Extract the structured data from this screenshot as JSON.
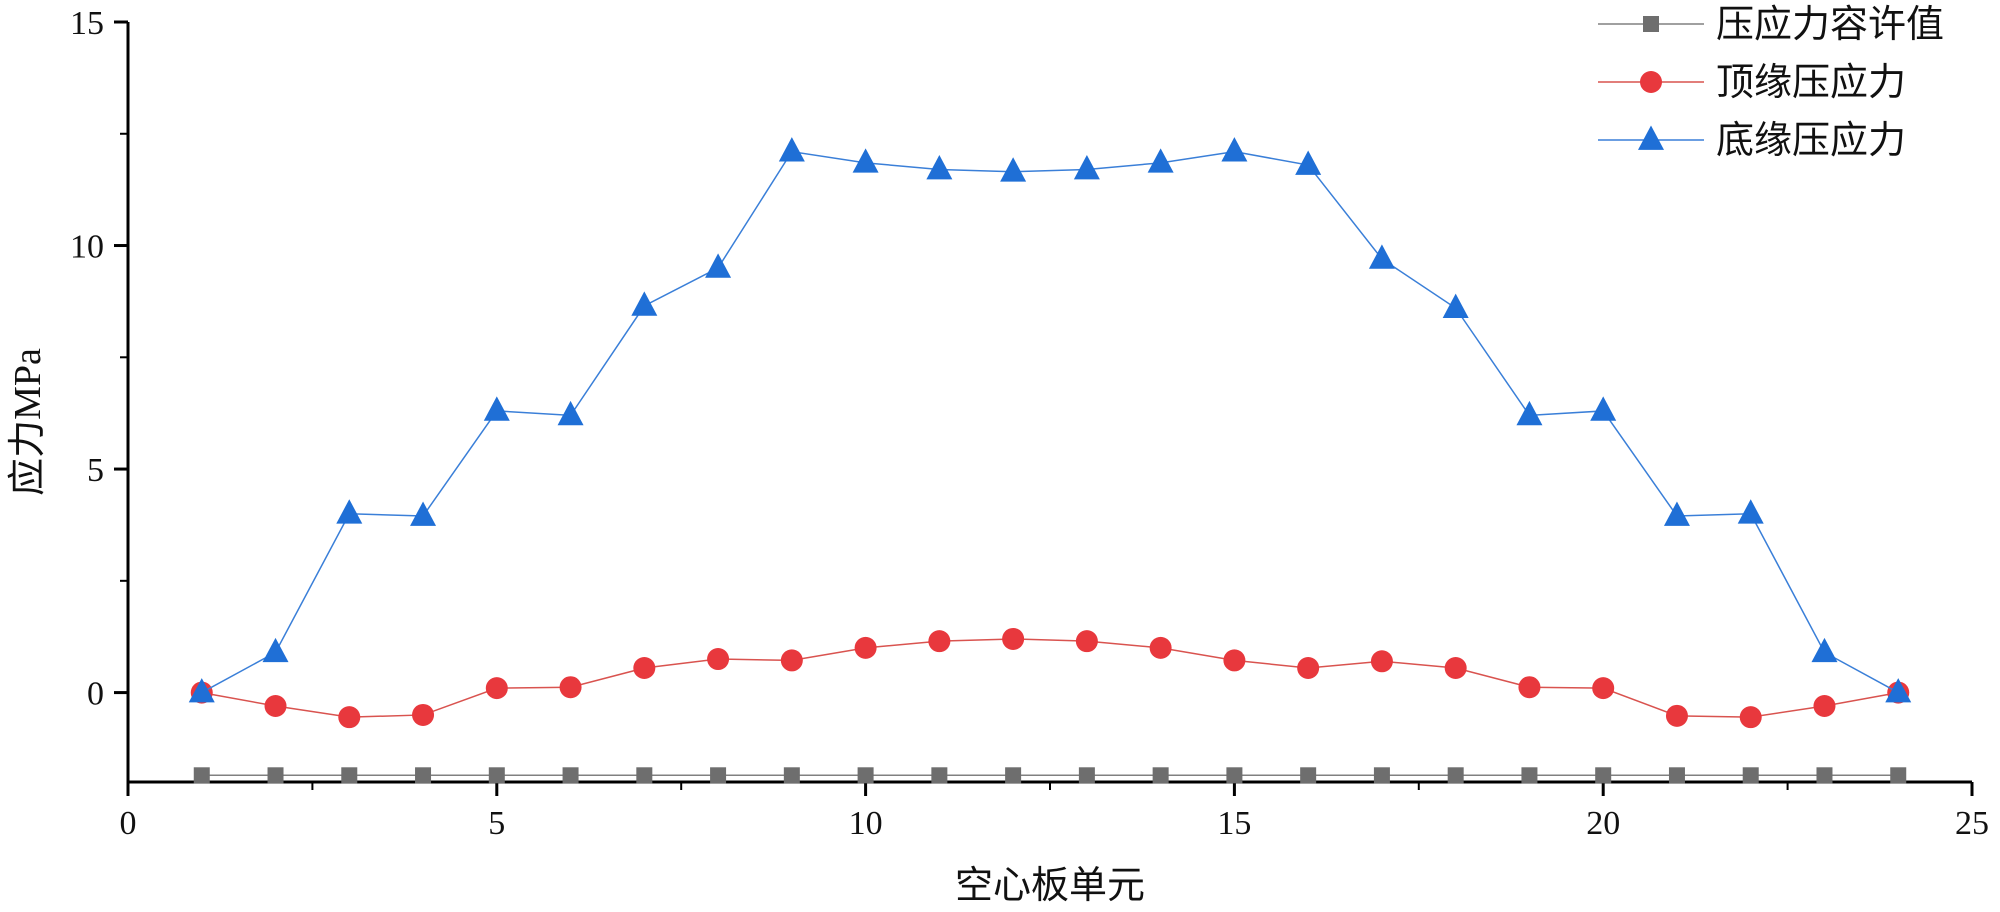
{
  "chart_data": {
    "type": "line",
    "title": "",
    "xlabel": "空心板单元",
    "ylabel": "应力MPa",
    "xlim": [
      0,
      25
    ],
    "ylim": [
      -2,
      15
    ],
    "x_ticks": [
      0,
      5,
      10,
      15,
      20,
      25
    ],
    "y_ticks": [
      0,
      5,
      10,
      15
    ],
    "grid": false,
    "legend_position": "top-right",
    "x": [
      1,
      2,
      3,
      4,
      5,
      6,
      7,
      8,
      9,
      10,
      11,
      12,
      13,
      14,
      15,
      16,
      17,
      18,
      19,
      20,
      21,
      22,
      23,
      24
    ],
    "series": [
      {
        "name": "压应力容许值",
        "marker": "square",
        "color": "#6e6e6e",
        "line_color": "#808080",
        "values": [
          -1.85,
          -1.85,
          -1.85,
          -1.85,
          -1.85,
          -1.85,
          -1.85,
          -1.85,
          -1.85,
          -1.85,
          -1.85,
          -1.85,
          -1.85,
          -1.85,
          -1.85,
          -1.85,
          -1.85,
          -1.85,
          -1.85,
          -1.85,
          -1.85,
          -1.85,
          -1.85,
          -1.85
        ]
      },
      {
        "name": "顶缘压应力",
        "marker": "circle",
        "color": "#e8383d",
        "line_color": "#d9534f",
        "values": [
          0.0,
          -0.3,
          -0.55,
          -0.5,
          0.1,
          0.12,
          0.55,
          0.75,
          0.72,
          1.0,
          1.15,
          1.2,
          1.15,
          1.0,
          0.72,
          0.55,
          0.7,
          0.55,
          0.12,
          0.1,
          -0.52,
          -0.55,
          -0.3,
          0.0
        ]
      },
      {
        "name": "底缘压应力",
        "marker": "triangle",
        "color": "#1f6fd6",
        "line_color": "#3a7fd8",
        "values": [
          0.0,
          0.9,
          4.0,
          3.95,
          6.3,
          6.2,
          8.65,
          9.5,
          12.1,
          11.85,
          11.7,
          11.65,
          11.7,
          11.85,
          12.1,
          11.8,
          9.7,
          8.6,
          6.2,
          6.3,
          3.95,
          4.0,
          0.9,
          0.0
        ]
      }
    ]
  }
}
